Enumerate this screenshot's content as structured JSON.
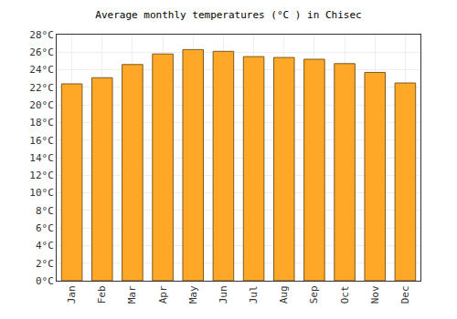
{
  "chart_data": {
    "type": "bar",
    "title": "Average monthly temperatures (°C ) in Chisec",
    "categories": [
      "Jan",
      "Feb",
      "Mar",
      "Apr",
      "May",
      "Jun",
      "Jul",
      "Aug",
      "Sep",
      "Oct",
      "Nov",
      "Dec"
    ],
    "values": [
      22.4,
      23.1,
      24.6,
      25.8,
      26.3,
      26.1,
      25.5,
      25.4,
      25.2,
      24.7,
      23.7,
      22.5
    ],
    "color": "#ffa726",
    "ylim": [
      0,
      28
    ],
    "yticks": [
      {
        "value": 0,
        "label": "0°C"
      },
      {
        "value": 2,
        "label": "2°C"
      },
      {
        "value": 4,
        "label": "4°C"
      },
      {
        "value": 6,
        "label": "6°C"
      },
      {
        "value": 8,
        "label": "8°C"
      },
      {
        "value": 10,
        "label": "10°C"
      },
      {
        "value": 12,
        "label": "12°C"
      },
      {
        "value": 14,
        "label": "14°C"
      },
      {
        "value": 16,
        "label": "16°C"
      },
      {
        "value": 18,
        "label": "18°C"
      },
      {
        "value": 20,
        "label": "20°C"
      },
      {
        "value": 22,
        "label": "22°C"
      },
      {
        "value": 24,
        "label": "24°C"
      },
      {
        "value": 26,
        "label": "26°C"
      },
      {
        "value": 28,
        "label": "28°C"
      }
    ],
    "grid": true
  }
}
